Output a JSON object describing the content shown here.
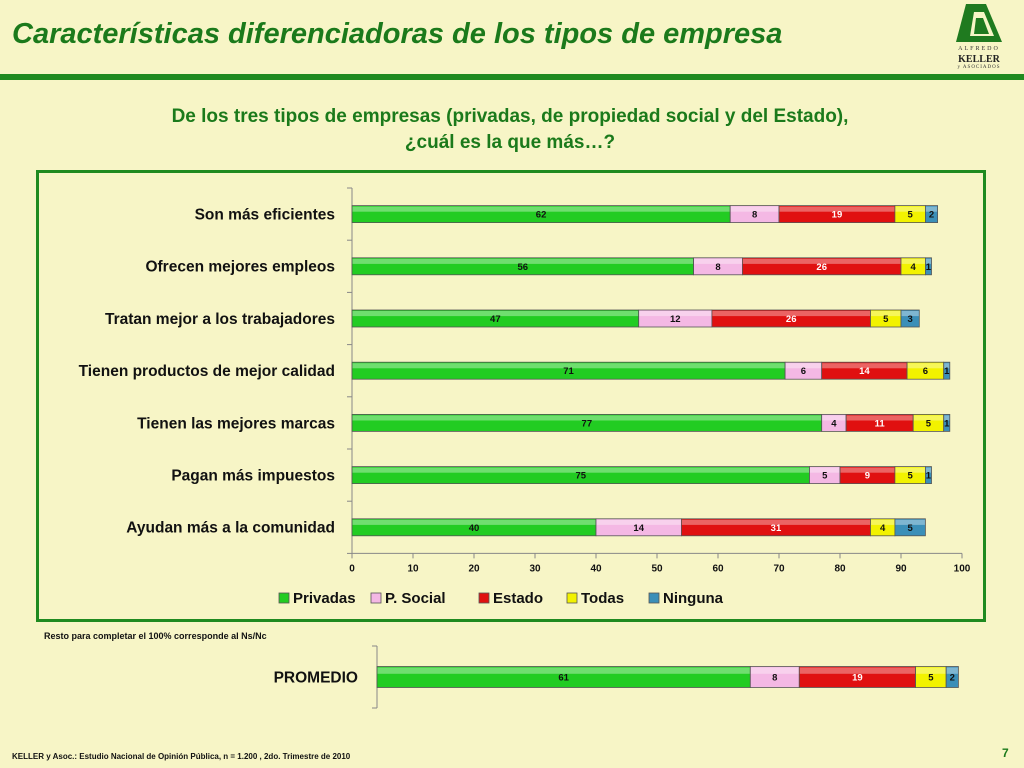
{
  "title": "Características diferenciadoras de los tipos de empresa",
  "logo": {
    "line1": "ALFREDO",
    "line2": "KELLER",
    "line3": "y ASOCIADOS"
  },
  "question": {
    "line1": "De los tres tipos de empresas (privadas, de propiedad social y del Estado),",
    "line2": "¿cuál es la que más…?"
  },
  "colors": {
    "Privadas": "#22cc22",
    "P. Social": "#f4b8e4",
    "Estado": "#e01010",
    "Todas": "#f2f200",
    "Ninguna": "#3b8fb8"
  },
  "chart_data": [
    {
      "type": "bar",
      "orientation": "horizontal",
      "stacked": true,
      "categories": [
        "Son más eficientes",
        "Ofrecen mejores empleos",
        "Tratan mejor a los trabajadores",
        "Tienen productos de mejor calidad",
        "Tienen las mejores marcas",
        "Pagan más impuestos",
        "Ayudan más a la comunidad"
      ],
      "series": [
        {
          "name": "Privadas",
          "values": [
            62,
            56,
            47,
            71,
            77,
            75,
            40
          ]
        },
        {
          "name": "P. Social",
          "values": [
            8,
            8,
            12,
            6,
            4,
            5,
            14
          ]
        },
        {
          "name": "Estado",
          "values": [
            19,
            26,
            26,
            14,
            11,
            9,
            31
          ]
        },
        {
          "name": "Todas",
          "values": [
            5,
            4,
            5,
            6,
            5,
            5,
            4
          ]
        },
        {
          "name": "Ninguna",
          "values": [
            2,
            1,
            3,
            1,
            1,
            1,
            5
          ]
        }
      ],
      "xlim": [
        0,
        100
      ],
      "xticks": [
        0,
        10,
        20,
        30,
        40,
        50,
        60,
        70,
        80,
        90,
        100
      ],
      "legend": "bottom",
      "grid": false
    },
    {
      "type": "bar",
      "orientation": "horizontal",
      "stacked": true,
      "categories": [
        "PROMEDIO"
      ],
      "series": [
        {
          "name": "Privadas",
          "values": [
            61
          ]
        },
        {
          "name": "P. Social",
          "values": [
            8
          ]
        },
        {
          "name": "Estado",
          "values": [
            19
          ]
        },
        {
          "name": "Todas",
          "values": [
            5
          ]
        },
        {
          "name": "Ninguna",
          "values": [
            2
          ]
        }
      ],
      "xlim": [
        0,
        100
      ]
    }
  ],
  "note": "Resto para completar el 100% corresponde al Ns/Nc",
  "footer": "KELLER y Asoc.: Estudio Nacional de Opinión Pública, n = 1.200 , 2do. Trimestre de 2010",
  "page_number": "7"
}
